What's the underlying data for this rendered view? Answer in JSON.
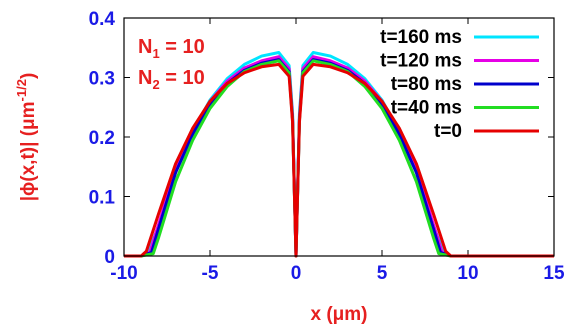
{
  "chart_data": {
    "type": "line",
    "xlabel": "x (μm)",
    "ylabel": "|ϕ(x,t)| (μm",
    "ylabel_exp": "-1/2",
    "ylabel_close": ")",
    "xlim": [
      -10,
      15
    ],
    "ylim": [
      0,
      0.4
    ],
    "x_ticks": [
      "-10",
      "-5",
      "0",
      "5",
      "10",
      "15"
    ],
    "y_ticks": [
      "0",
      "0.1",
      "0.2",
      "0.3",
      "0.4"
    ],
    "legend_position": "top-right",
    "annotations": [
      {
        "main": "N",
        "sub": "1",
        "rest": " = 10"
      },
      {
        "main": "N",
        "sub": "2",
        "rest": " = 10"
      }
    ],
    "series": [
      {
        "name": "t=160 ms",
        "color": "#00e5ff",
        "x": [
          -10,
          -9,
          -8.6,
          -8,
          -7,
          -6,
          -5,
          -4,
          -3,
          -2,
          -1,
          -0.4,
          -0.2,
          0,
          0.2,
          0.4,
          1,
          2,
          3,
          4,
          5,
          6,
          7,
          8,
          8.6,
          9,
          10,
          15
        ],
        "y": [
          0,
          0,
          0.005,
          0.05,
          0.145,
          0.21,
          0.262,
          0.298,
          0.322,
          0.336,
          0.342,
          0.32,
          0.24,
          0,
          0.24,
          0.32,
          0.342,
          0.336,
          0.322,
          0.298,
          0.262,
          0.21,
          0.145,
          0.05,
          0.005,
          0,
          0,
          0
        ]
      },
      {
        "name": "t=120 ms",
        "color": "#e600e6",
        "x": [
          -10,
          -9,
          -8.5,
          -8,
          -7,
          -6,
          -5,
          -4,
          -3,
          -2,
          -1,
          -0.4,
          -0.2,
          0,
          0.2,
          0.4,
          1,
          2,
          3,
          4,
          5,
          6,
          7,
          8,
          8.5,
          9,
          10,
          15
        ],
        "y": [
          0,
          0,
          0.006,
          0.052,
          0.145,
          0.21,
          0.26,
          0.294,
          0.316,
          0.328,
          0.335,
          0.315,
          0.235,
          0,
          0.235,
          0.315,
          0.335,
          0.328,
          0.316,
          0.294,
          0.26,
          0.21,
          0.145,
          0.052,
          0.006,
          0,
          0,
          0
        ]
      },
      {
        "name": "t=80 ms",
        "color": "#0000cc",
        "x": [
          -10,
          -9,
          -8.4,
          -8,
          -7,
          -6,
          -5,
          -4,
          -3,
          -2,
          -1,
          -0.4,
          -0.2,
          0,
          0.2,
          0.4,
          1,
          2,
          3,
          4,
          5,
          6,
          7,
          8,
          8.4,
          9,
          10,
          15
        ],
        "y": [
          0,
          0,
          0.006,
          0.045,
          0.14,
          0.205,
          0.255,
          0.29,
          0.312,
          0.324,
          0.33,
          0.31,
          0.23,
          0,
          0.23,
          0.31,
          0.33,
          0.324,
          0.312,
          0.29,
          0.255,
          0.205,
          0.14,
          0.045,
          0.006,
          0,
          0,
          0
        ]
      },
      {
        "name": "t=40 ms",
        "color": "#22dd22",
        "x": [
          -10,
          -9,
          -8.3,
          -8,
          -7,
          -6,
          -5,
          -4,
          -3,
          -2,
          -1,
          -0.4,
          -0.2,
          0,
          0.2,
          0.4,
          1,
          2,
          3,
          4,
          5,
          6,
          7,
          8,
          8.3,
          9,
          10,
          15
        ],
        "y": [
          0,
          0,
          0.004,
          0.03,
          0.125,
          0.195,
          0.248,
          0.285,
          0.31,
          0.322,
          0.328,
          0.308,
          0.228,
          0,
          0.228,
          0.308,
          0.328,
          0.322,
          0.31,
          0.285,
          0.248,
          0.195,
          0.125,
          0.03,
          0.004,
          0,
          0,
          0
        ]
      },
      {
        "name": "t=0",
        "color": "#e60000",
        "x": [
          -10,
          -9,
          -8.7,
          -8,
          -7,
          -6,
          -5,
          -4,
          -3,
          -2,
          -1,
          -0.4,
          -0.2,
          0,
          0.2,
          0.4,
          1,
          2,
          3,
          4,
          5,
          6,
          7,
          8,
          8.7,
          9,
          10,
          15
        ],
        "y": [
          0,
          0,
          0.008,
          0.07,
          0.155,
          0.215,
          0.26,
          0.29,
          0.308,
          0.318,
          0.322,
          0.302,
          0.225,
          0,
          0.225,
          0.302,
          0.322,
          0.318,
          0.308,
          0.29,
          0.26,
          0.215,
          0.155,
          0.07,
          0.008,
          0,
          0,
          0
        ]
      }
    ]
  }
}
